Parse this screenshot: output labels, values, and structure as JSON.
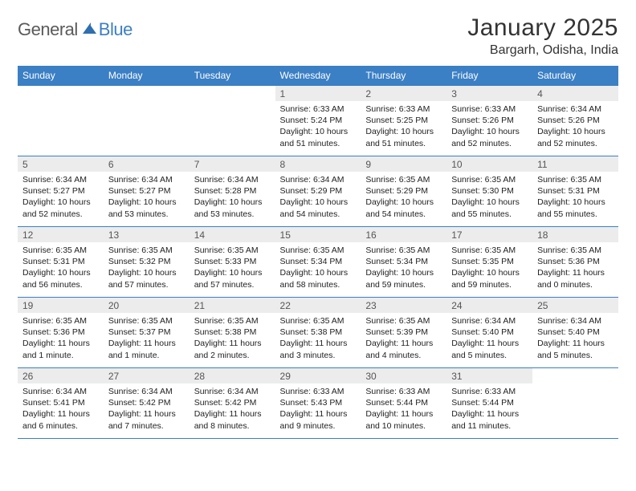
{
  "logo": {
    "text1": "General",
    "text2": "Blue"
  },
  "title": "January 2025",
  "location": "Bargarh, Odisha, India",
  "colors": {
    "header_bg": "#3b7fc4",
    "header_text": "#ffffff",
    "daynum_bg": "#ececec",
    "rule": "#3b7fc4",
    "logo_gray": "#5a5a5a",
    "logo_blue": "#3b7fc4"
  },
  "typography": {
    "title_fontsize": 30,
    "location_fontsize": 16,
    "header_fontsize": 12,
    "daynum_fontsize": 12,
    "detail_fontsize": 10.5
  },
  "day_headers": [
    "Sunday",
    "Monday",
    "Tuesday",
    "Wednesday",
    "Thursday",
    "Friday",
    "Saturday"
  ],
  "weeks": [
    [
      {
        "n": "",
        "sunrise": "",
        "sunset": "",
        "daylight": ""
      },
      {
        "n": "",
        "sunrise": "",
        "sunset": "",
        "daylight": ""
      },
      {
        "n": "",
        "sunrise": "",
        "sunset": "",
        "daylight": ""
      },
      {
        "n": "1",
        "sunrise": "Sunrise: 6:33 AM",
        "sunset": "Sunset: 5:24 PM",
        "daylight": "Daylight: 10 hours and 51 minutes."
      },
      {
        "n": "2",
        "sunrise": "Sunrise: 6:33 AM",
        "sunset": "Sunset: 5:25 PM",
        "daylight": "Daylight: 10 hours and 51 minutes."
      },
      {
        "n": "3",
        "sunrise": "Sunrise: 6:33 AM",
        "sunset": "Sunset: 5:26 PM",
        "daylight": "Daylight: 10 hours and 52 minutes."
      },
      {
        "n": "4",
        "sunrise": "Sunrise: 6:34 AM",
        "sunset": "Sunset: 5:26 PM",
        "daylight": "Daylight: 10 hours and 52 minutes."
      }
    ],
    [
      {
        "n": "5",
        "sunrise": "Sunrise: 6:34 AM",
        "sunset": "Sunset: 5:27 PM",
        "daylight": "Daylight: 10 hours and 52 minutes."
      },
      {
        "n": "6",
        "sunrise": "Sunrise: 6:34 AM",
        "sunset": "Sunset: 5:27 PM",
        "daylight": "Daylight: 10 hours and 53 minutes."
      },
      {
        "n": "7",
        "sunrise": "Sunrise: 6:34 AM",
        "sunset": "Sunset: 5:28 PM",
        "daylight": "Daylight: 10 hours and 53 minutes."
      },
      {
        "n": "8",
        "sunrise": "Sunrise: 6:34 AM",
        "sunset": "Sunset: 5:29 PM",
        "daylight": "Daylight: 10 hours and 54 minutes."
      },
      {
        "n": "9",
        "sunrise": "Sunrise: 6:35 AM",
        "sunset": "Sunset: 5:29 PM",
        "daylight": "Daylight: 10 hours and 54 minutes."
      },
      {
        "n": "10",
        "sunrise": "Sunrise: 6:35 AM",
        "sunset": "Sunset: 5:30 PM",
        "daylight": "Daylight: 10 hours and 55 minutes."
      },
      {
        "n": "11",
        "sunrise": "Sunrise: 6:35 AM",
        "sunset": "Sunset: 5:31 PM",
        "daylight": "Daylight: 10 hours and 55 minutes."
      }
    ],
    [
      {
        "n": "12",
        "sunrise": "Sunrise: 6:35 AM",
        "sunset": "Sunset: 5:31 PM",
        "daylight": "Daylight: 10 hours and 56 minutes."
      },
      {
        "n": "13",
        "sunrise": "Sunrise: 6:35 AM",
        "sunset": "Sunset: 5:32 PM",
        "daylight": "Daylight: 10 hours and 57 minutes."
      },
      {
        "n": "14",
        "sunrise": "Sunrise: 6:35 AM",
        "sunset": "Sunset: 5:33 PM",
        "daylight": "Daylight: 10 hours and 57 minutes."
      },
      {
        "n": "15",
        "sunrise": "Sunrise: 6:35 AM",
        "sunset": "Sunset: 5:34 PM",
        "daylight": "Daylight: 10 hours and 58 minutes."
      },
      {
        "n": "16",
        "sunrise": "Sunrise: 6:35 AM",
        "sunset": "Sunset: 5:34 PM",
        "daylight": "Daylight: 10 hours and 59 minutes."
      },
      {
        "n": "17",
        "sunrise": "Sunrise: 6:35 AM",
        "sunset": "Sunset: 5:35 PM",
        "daylight": "Daylight: 10 hours and 59 minutes."
      },
      {
        "n": "18",
        "sunrise": "Sunrise: 6:35 AM",
        "sunset": "Sunset: 5:36 PM",
        "daylight": "Daylight: 11 hours and 0 minutes."
      }
    ],
    [
      {
        "n": "19",
        "sunrise": "Sunrise: 6:35 AM",
        "sunset": "Sunset: 5:36 PM",
        "daylight": "Daylight: 11 hours and 1 minute."
      },
      {
        "n": "20",
        "sunrise": "Sunrise: 6:35 AM",
        "sunset": "Sunset: 5:37 PM",
        "daylight": "Daylight: 11 hours and 1 minute."
      },
      {
        "n": "21",
        "sunrise": "Sunrise: 6:35 AM",
        "sunset": "Sunset: 5:38 PM",
        "daylight": "Daylight: 11 hours and 2 minutes."
      },
      {
        "n": "22",
        "sunrise": "Sunrise: 6:35 AM",
        "sunset": "Sunset: 5:38 PM",
        "daylight": "Daylight: 11 hours and 3 minutes."
      },
      {
        "n": "23",
        "sunrise": "Sunrise: 6:35 AM",
        "sunset": "Sunset: 5:39 PM",
        "daylight": "Daylight: 11 hours and 4 minutes."
      },
      {
        "n": "24",
        "sunrise": "Sunrise: 6:34 AM",
        "sunset": "Sunset: 5:40 PM",
        "daylight": "Daylight: 11 hours and 5 minutes."
      },
      {
        "n": "25",
        "sunrise": "Sunrise: 6:34 AM",
        "sunset": "Sunset: 5:40 PM",
        "daylight": "Daylight: 11 hours and 5 minutes."
      }
    ],
    [
      {
        "n": "26",
        "sunrise": "Sunrise: 6:34 AM",
        "sunset": "Sunset: 5:41 PM",
        "daylight": "Daylight: 11 hours and 6 minutes."
      },
      {
        "n": "27",
        "sunrise": "Sunrise: 6:34 AM",
        "sunset": "Sunset: 5:42 PM",
        "daylight": "Daylight: 11 hours and 7 minutes."
      },
      {
        "n": "28",
        "sunrise": "Sunrise: 6:34 AM",
        "sunset": "Sunset: 5:42 PM",
        "daylight": "Daylight: 11 hours and 8 minutes."
      },
      {
        "n": "29",
        "sunrise": "Sunrise: 6:33 AM",
        "sunset": "Sunset: 5:43 PM",
        "daylight": "Daylight: 11 hours and 9 minutes."
      },
      {
        "n": "30",
        "sunrise": "Sunrise: 6:33 AM",
        "sunset": "Sunset: 5:44 PM",
        "daylight": "Daylight: 11 hours and 10 minutes."
      },
      {
        "n": "31",
        "sunrise": "Sunrise: 6:33 AM",
        "sunset": "Sunset: 5:44 PM",
        "daylight": "Daylight: 11 hours and 11 minutes."
      },
      {
        "n": "",
        "sunrise": "",
        "sunset": "",
        "daylight": ""
      }
    ]
  ]
}
